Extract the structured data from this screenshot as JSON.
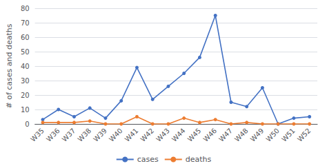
{
  "chart_data": {
    "type": "line",
    "categories": [
      "W35",
      "W36",
      "W37",
      "W38",
      "W39",
      "W40",
      "W41",
      "W42",
      "W43",
      "W44",
      "W45",
      "W46",
      "W47",
      "W48",
      "W49",
      "W50",
      "W51",
      "W52"
    ],
    "series": [
      {
        "name": "cases",
        "color": "#4472C4",
        "values": [
          3,
          10,
          5,
          11,
          4,
          16,
          39,
          17,
          26,
          35,
          46,
          75,
          15,
          12,
          25,
          0,
          4,
          5
        ]
      },
      {
        "name": "deaths",
        "color": "#ED7D31",
        "values": [
          1,
          1,
          1,
          2,
          0,
          0,
          5,
          0,
          0,
          4,
          1,
          3,
          0,
          1,
          0,
          0,
          0,
          0
        ]
      }
    ],
    "ylabel": "# of cases and deaths",
    "ylim": [
      0,
      80
    ],
    "yticks": [
      0,
      10,
      20,
      30,
      40,
      50,
      60,
      70,
      80
    ],
    "marker": "circle",
    "grid": true,
    "legend": "bottom"
  }
}
